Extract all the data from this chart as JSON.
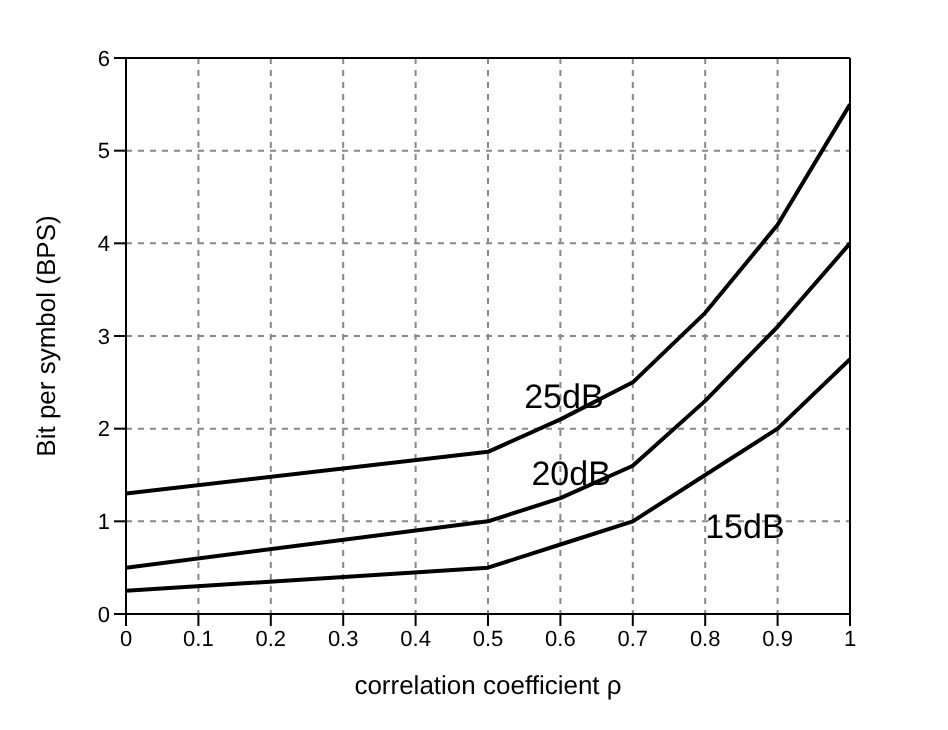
{
  "chart_data": {
    "type": "line",
    "xlabel": "correlation coefficient ρ",
    "ylabel": "Bit per symbol (BPS)",
    "x": [
      0,
      0.5,
      0.6,
      0.7,
      0.8,
      0.9,
      1
    ],
    "series": [
      {
        "name": "25dB",
        "color": "#000000",
        "values": [
          1.3,
          1.75,
          2.1,
          2.5,
          3.25,
          4.2,
          5.5
        ]
      },
      {
        "name": "20dB",
        "color": "#000000",
        "values": [
          0.5,
          1.0,
          1.25,
          1.6,
          2.3,
          3.1,
          4.0
        ]
      },
      {
        "name": "15dB",
        "color": "#000000",
        "values": [
          0.25,
          0.5,
          0.75,
          1.0,
          1.5,
          2.0,
          2.75
        ]
      }
    ],
    "xlim": [
      0,
      1
    ],
    "xticks": [
      0,
      0.1,
      0.2,
      0.3,
      0.4,
      0.5,
      0.6,
      0.7,
      0.8,
      0.9,
      1
    ],
    "ylim": [
      0,
      6
    ],
    "yticks": [
      0,
      1,
      2,
      3,
      4,
      5,
      6
    ],
    "grid": true,
    "marker": "none",
    "line_style": "solid"
  }
}
